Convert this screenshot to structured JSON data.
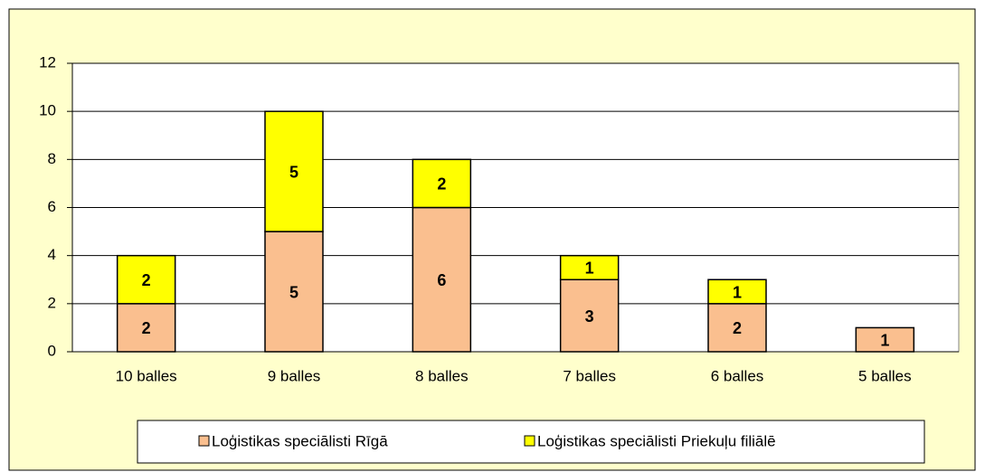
{
  "chart_data": {
    "type": "stacked_bar",
    "categories": [
      "10 balles",
      "9 balles",
      "8 balles",
      "7 balles",
      "6 balles",
      "5 balles"
    ],
    "series": [
      {
        "name": "Loģistikas speciālisti Rīgā",
        "color": "#fabf8f",
        "values": [
          2,
          5,
          6,
          3,
          2,
          1
        ]
      },
      {
        "name": "Loģistikas speciālisti Priekuļu filiālē",
        "color": "#ffff00",
        "values": [
          2,
          5,
          2,
          1,
          1,
          null
        ]
      }
    ],
    "ylim": [
      0,
      12
    ],
    "yticks": [
      0,
      2,
      4,
      6,
      8,
      10,
      12
    ],
    "grid": true,
    "legend": "bottom"
  }
}
